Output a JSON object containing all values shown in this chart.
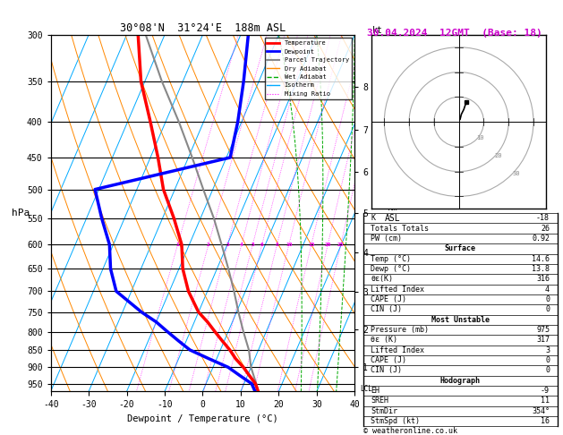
{
  "title_left": "30°08'N  31°24'E  188m ASL",
  "title_right": "30.04.2024  12GMT  (Base: 18)",
  "xlabel": "Dewpoint / Temperature (°C)",
  "pmin": 300,
  "pmax": 975,
  "tmin": -40,
  "tmax": 40,
  "pressure_levels": [
    300,
    350,
    400,
    450,
    500,
    550,
    600,
    650,
    700,
    750,
    800,
    850,
    900,
    950
  ],
  "temp_profile_p": [
    975,
    950,
    925,
    900,
    875,
    850,
    825,
    800,
    775,
    750,
    700,
    650,
    600,
    550,
    500,
    450,
    400,
    350,
    300
  ],
  "temp_profile_T": [
    14.6,
    13.0,
    10.5,
    8.0,
    5.0,
    2.5,
    -0.5,
    -3.5,
    -6.5,
    -10.0,
    -15.0,
    -19.0,
    -22.0,
    -27.0,
    -33.0,
    -38.0,
    -44.0,
    -51.0,
    -57.0
  ],
  "dewp_profile_p": [
    975,
    950,
    925,
    900,
    875,
    850,
    825,
    800,
    775,
    750,
    700,
    650,
    600,
    550,
    500,
    450,
    400,
    350,
    300
  ],
  "dewp_profile_T": [
    13.8,
    12.0,
    8.0,
    4.0,
    -2.0,
    -8.0,
    -12.0,
    -16.0,
    -20.0,
    -25.0,
    -34.0,
    -38.0,
    -41.0,
    -46.0,
    -51.0,
    -19.0,
    -21.0,
    -24.0,
    -28.0
  ],
  "parcel_profile_p": [
    975,
    950,
    900,
    850,
    800,
    750,
    700,
    650,
    600,
    550,
    500,
    450,
    400,
    350,
    300
  ],
  "parcel_profile_T": [
    14.6,
    13.2,
    10.0,
    7.5,
    4.0,
    0.5,
    -3.0,
    -7.0,
    -11.5,
    -16.5,
    -22.5,
    -29.0,
    -36.5,
    -45.5,
    -55.0
  ],
  "lcl_pressure": 968,
  "mixing_ratio_values": [
    1,
    2,
    3,
    4,
    5,
    6,
    8,
    10,
    15,
    20,
    25
  ],
  "color_temp": "#ff0000",
  "color_dewp": "#0000ff",
  "color_parcel": "#888888",
  "color_dry_adiabat": "#ff8800",
  "color_wet_adiabat": "#00aa00",
  "color_isotherm": "#00aaff",
  "color_mixing": "#ff00ff",
  "skew_factor": 40,
  "km_ticks": [
    1,
    2,
    3,
    4,
    5,
    6,
    7,
    8
  ],
  "hodo_circles": [
    10,
    20,
    30
  ],
  "hodo_u": [
    0.5,
    1,
    2,
    3
  ],
  "hodo_v": [
    1,
    3,
    5,
    8
  ],
  "stat_K": -18,
  "stat_TT": 26,
  "stat_PW": 0.92,
  "stat_sfc_temp": 14.6,
  "stat_sfc_dewp": 13.8,
  "stat_sfc_thetae": 316,
  "stat_sfc_li": 4,
  "stat_sfc_cape": 0,
  "stat_sfc_cin": 0,
  "stat_mu_p": 975,
  "stat_mu_thetae": 317,
  "stat_mu_li": 3,
  "stat_mu_cape": 0,
  "stat_mu_cin": 0,
  "stat_EH": -9,
  "stat_SREH": 11,
  "stat_StmDir": 354,
  "stat_StmSpd": 16
}
